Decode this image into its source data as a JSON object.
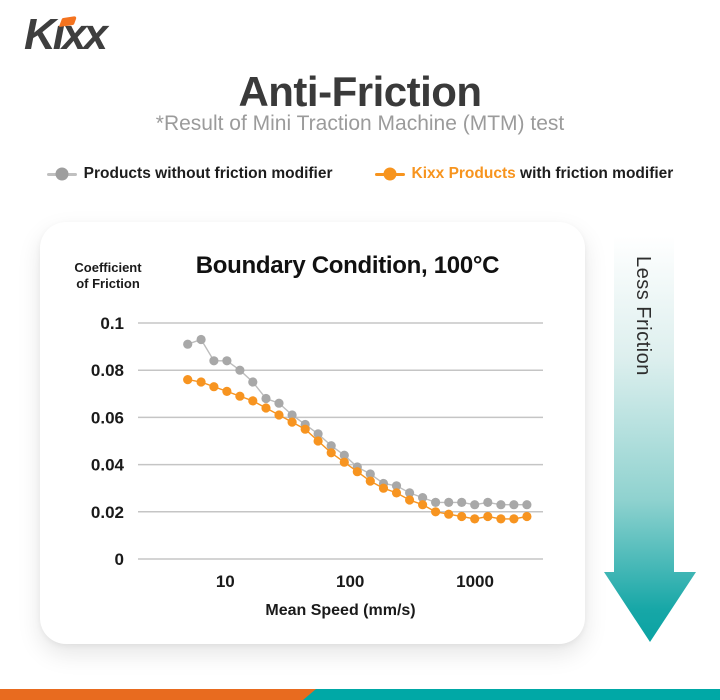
{
  "logo": {
    "text": "Kixx",
    "text_color": "#3e3e3e",
    "accent_color": "#f4731f"
  },
  "header": {
    "title": "Anti-Friction",
    "subtitle": "*Result of Mini Traction Machine (MTM) test"
  },
  "legend": {
    "items": [
      {
        "prefix": "",
        "label": "Products without friction modifier",
        "marker_color": "#9e9e9e",
        "line_color": "#c0c0c0",
        "prefix_color": "#1d1d1d"
      },
      {
        "prefix": "Kixx Products",
        "label": " with friction modifier",
        "marker_color": "#f7941e",
        "line_color": "#f7941e",
        "prefix_color": "#f7941e"
      }
    ]
  },
  "chart_data": {
    "type": "line",
    "title": "Boundary Condition, 100°C",
    "ylabel_lines": [
      "Coefficient",
      "of Friction"
    ],
    "xlabel": "Mean Speed (mm/s)",
    "x_scale": "log",
    "xlim": [
      2,
      3500
    ],
    "ylim": [
      0,
      0.1
    ],
    "x_ticks": [
      10,
      100,
      1000
    ],
    "y_ticks": [
      0,
      0.02,
      0.04,
      0.06,
      0.08,
      0.1
    ],
    "grid": true,
    "gridline_color": "#c5c5c5",
    "tick_color": "#1a1a1a",
    "x": [
      5,
      6.4,
      8.1,
      10.3,
      13.1,
      16.6,
      21.2,
      26.9,
      34.3,
      43.6,
      55.4,
      70.5,
      89.7,
      114,
      145,
      185,
      235,
      299,
      380,
      483,
      615,
      782,
      994,
      1265,
      1609,
      2046,
      2603
    ],
    "series": [
      {
        "name": "Products without friction modifier",
        "color": "#a8a8a8",
        "line_color": "#bdbdbd",
        "values": [
          0.091,
          0.093,
          0.084,
          0.084,
          0.08,
          0.075,
          0.068,
          0.066,
          0.061,
          0.057,
          0.053,
          0.048,
          0.044,
          0.039,
          0.036,
          0.032,
          0.031,
          0.028,
          0.026,
          0.024,
          0.024,
          0.024,
          0.023,
          0.024,
          0.023,
          0.023,
          0.023
        ]
      },
      {
        "name": "Kixx Products with friction modifier",
        "color": "#f79420",
        "line_color": "#f79420",
        "values": [
          0.076,
          0.075,
          0.073,
          0.071,
          0.069,
          0.067,
          0.064,
          0.061,
          0.058,
          0.055,
          0.05,
          0.045,
          0.041,
          0.037,
          0.033,
          0.03,
          0.028,
          0.025,
          0.023,
          0.02,
          0.019,
          0.018,
          0.017,
          0.018,
          0.017,
          0.017,
          0.018
        ]
      }
    ]
  },
  "arrow": {
    "label": "Less Friction",
    "gradient": [
      "#ffffff",
      "#ddefee",
      "#8fd2cf",
      "#17a7a7",
      "#0aa3a3"
    ]
  },
  "footer_band": {
    "left_color": "#e86b1f",
    "right_color": "#00a8a6"
  }
}
